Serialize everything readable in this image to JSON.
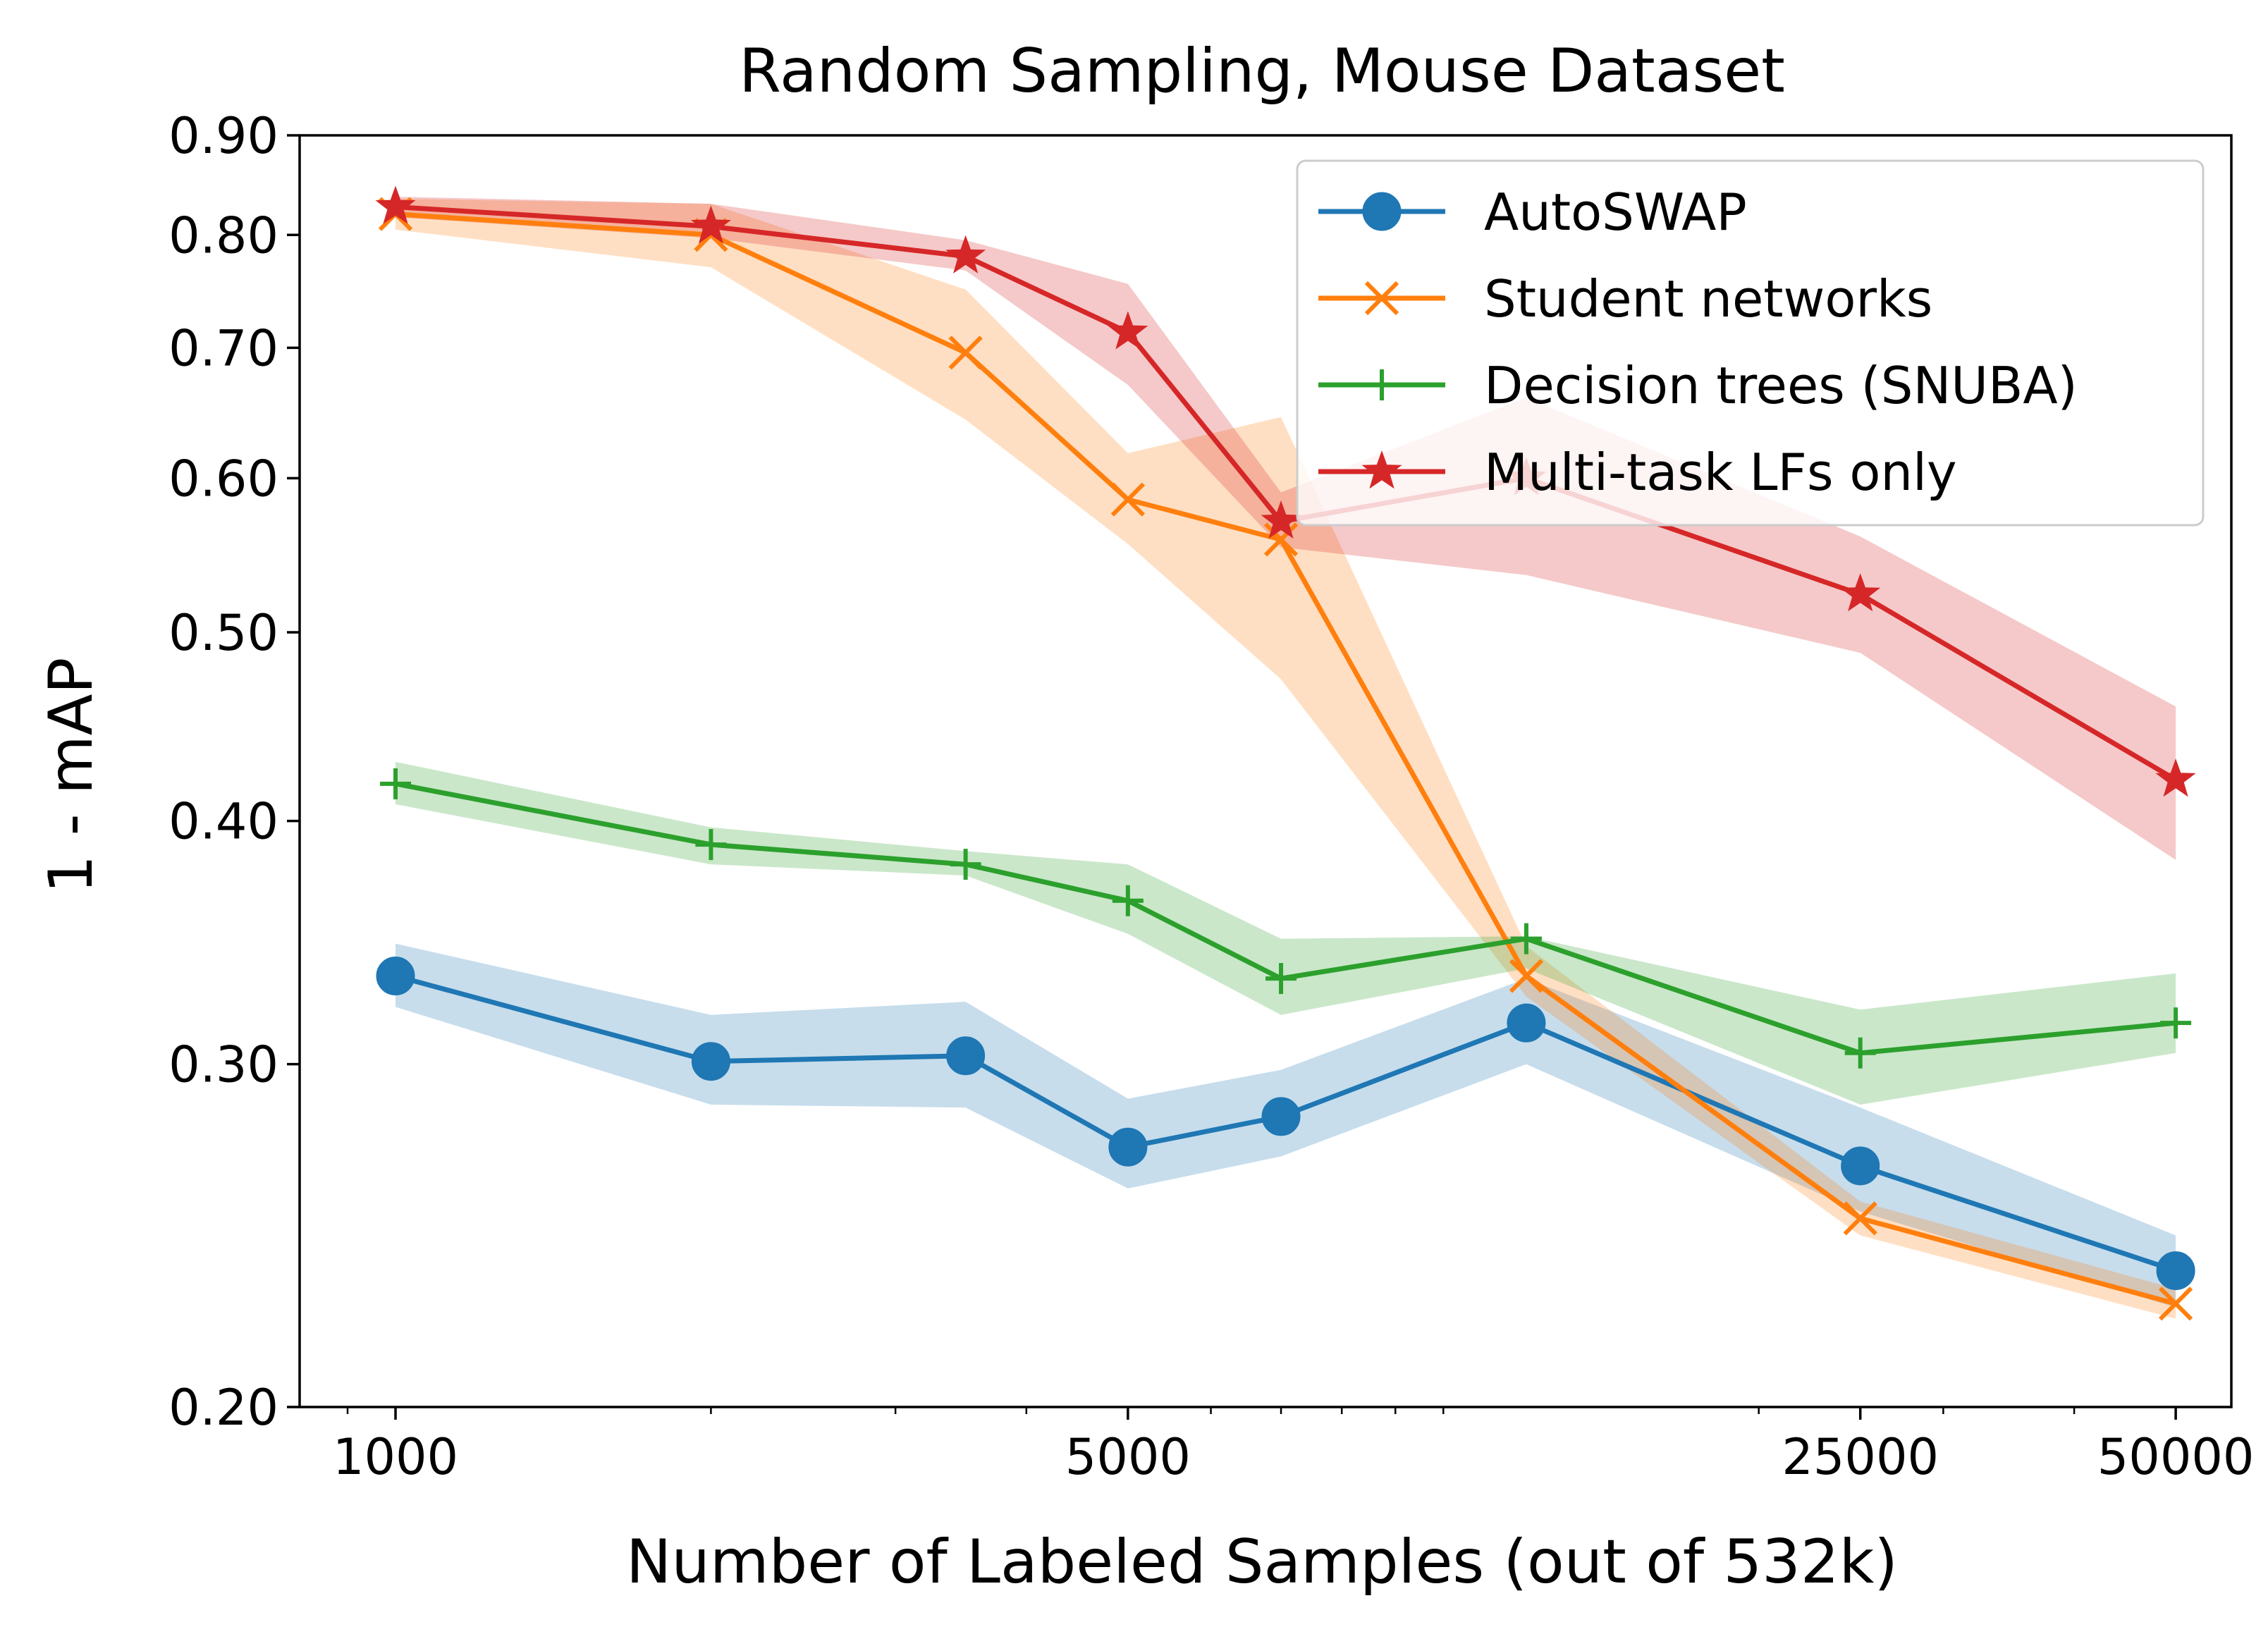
{
  "chart_data": {
    "type": "line",
    "title": "Random Sampling, Mouse Dataset",
    "xlabel": "Number of Labeled Samples (out of 532k)",
    "ylabel": "1 - mAP",
    "xscale": "log",
    "yscale": "log",
    "xlim": [
      810,
      56500
    ],
    "ylim": [
      0.2,
      0.9
    ],
    "x": [
      1000,
      2000,
      3500,
      5000,
      7000,
      12000,
      25000,
      50000
    ],
    "xticks": [
      1000,
      5000,
      25000,
      50000
    ],
    "xtick_labels": [
      "1000",
      "5000",
      "25000",
      "50000"
    ],
    "yticks": [
      0.2,
      0.3,
      0.4,
      0.5,
      0.6,
      0.7,
      0.8,
      0.9
    ],
    "ytick_labels": [
      "0.20",
      "0.30",
      "0.40",
      "0.50",
      "0.60",
      "0.70",
      "0.80",
      "0.90"
    ],
    "legend_position": "top-right",
    "series": [
      {
        "name": "AutoSWAP",
        "color": "#1f77b4",
        "marker": "circle",
        "values": [
          0.333,
          0.301,
          0.303,
          0.272,
          0.282,
          0.315,
          0.266,
          0.235
        ],
        "lower": [
          0.321,
          0.286,
          0.285,
          0.259,
          0.269,
          0.3,
          0.252,
          0.225
        ],
        "upper": [
          0.346,
          0.318,
          0.323,
          0.288,
          0.298,
          0.332,
          0.285,
          0.245
        ]
      },
      {
        "name": "Student networks",
        "color": "#ff7f0e",
        "marker": "x",
        "values": [
          0.82,
          0.8,
          0.696,
          0.585,
          0.558,
          0.333,
          0.25,
          0.226
        ],
        "lower": [
          0.805,
          0.77,
          0.643,
          0.555,
          0.473,
          0.325,
          0.245,
          0.222
        ],
        "upper": [
          0.835,
          0.83,
          0.75,
          0.618,
          0.645,
          0.345,
          0.255,
          0.23
        ]
      },
      {
        "name": "Decision trees (SNUBA)",
        "color": "#2ca02c",
        "marker": "plus",
        "values": [
          0.418,
          0.389,
          0.38,
          0.364,
          0.332,
          0.348,
          0.304,
          0.315
        ],
        "lower": [
          0.408,
          0.38,
          0.375,
          0.35,
          0.318,
          0.336,
          0.286,
          0.304
        ],
        "upper": [
          0.429,
          0.397,
          0.386,
          0.38,
          0.348,
          0.349,
          0.32,
          0.334
        ]
      },
      {
        "name": "Multi-task LFs only",
        "color": "#d62728",
        "marker": "star",
        "values": [
          0.827,
          0.808,
          0.78,
          0.713,
          0.57,
          0.6,
          0.523,
          0.42
        ],
        "lower": [
          0.817,
          0.797,
          0.767,
          0.67,
          0.553,
          0.535,
          0.488,
          0.382
        ],
        "upper": [
          0.837,
          0.83,
          0.795,
          0.755,
          0.59,
          0.66,
          0.56,
          0.458
        ]
      }
    ]
  }
}
